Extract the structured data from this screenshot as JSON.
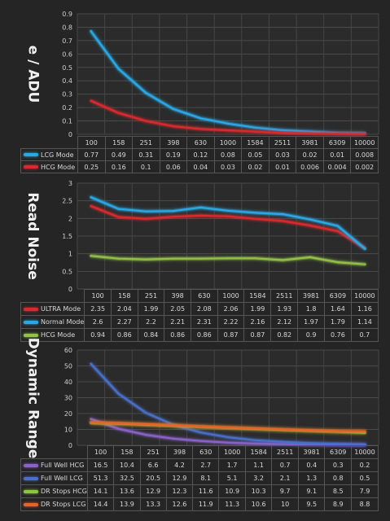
{
  "chart_data": [
    {
      "type": "line",
      "ylabel": "e / ADU",
      "ylim": [
        0,
        0.9
      ],
      "yticks": [
        "0",
        "0.1",
        "0.2",
        "0.3",
        "0.4",
        "0.5",
        "0.6",
        "0.7",
        "0.8",
        "0.9"
      ],
      "categories": [
        "100",
        "158",
        "251",
        "398",
        "630",
        "1000",
        "1584",
        "2511",
        "3981",
        "6309",
        "10000"
      ],
      "series": [
        {
          "name": "LCG Mode",
          "color": "#29a9e6",
          "values": [
            "0.77",
            "0.49",
            "0.31",
            "0.19",
            "0.12",
            "0.08",
            "0.05",
            "0.03",
            "0.02",
            "0.01",
            "0.008"
          ]
        },
        {
          "name": "HCG Mode",
          "color": "#d9292f",
          "values": [
            "0.25",
            "0.16",
            "0.1",
            "0.06",
            "0.04",
            "0.03",
            "0.02",
            "0.01",
            "0.006",
            "0.004",
            "0.002"
          ]
        }
      ]
    },
    {
      "type": "line",
      "ylabel": "Read Noise",
      "ylim": [
        0,
        3
      ],
      "yticks": [
        "0",
        "0.5",
        "1",
        "1.5",
        "2",
        "2.5",
        "3"
      ],
      "categories": [
        "100",
        "158",
        "251",
        "398",
        "630",
        "1000",
        "1584",
        "2511",
        "3981",
        "6309",
        "10000"
      ],
      "series": [
        {
          "name": "ULTRA Mode",
          "color": "#d9292f",
          "values": [
            "2.35",
            "2.04",
            "1.99",
            "2.05",
            "2.08",
            "2.06",
            "1.99",
            "1.93",
            "1.8",
            "1.64",
            "1.16"
          ]
        },
        {
          "name": "Normal Mode",
          "color": "#29a9e6",
          "values": [
            "2.6",
            "2.27",
            "2.2",
            "2.21",
            "2.31",
            "2.22",
            "2.16",
            "2.12",
            "1.97",
            "1.79",
            "1.14"
          ]
        },
        {
          "name": "HCG Mode",
          "color": "#93c047",
          "values": [
            "0.94",
            "0.86",
            "0.84",
            "0.86",
            "0.86",
            "0.87",
            "0.87",
            "0.82",
            "0.9",
            "0.76",
            "0.7"
          ]
        }
      ]
    },
    {
      "type": "line",
      "ylabel": "Dynamic Range",
      "ylim": [
        0,
        60
      ],
      "yticks": [
        "0",
        "10",
        "20",
        "30",
        "40",
        "50",
        "60"
      ],
      "categories": [
        "100",
        "158",
        "251",
        "398",
        "630",
        "1000",
        "1584",
        "2511",
        "3981",
        "6309",
        "10000"
      ],
      "series": [
        {
          "name": "Full Well HCG",
          "color": "#8a62c8",
          "values": [
            "16.5",
            "10.4",
            "6.6",
            "4.2",
            "2.7",
            "1.7",
            "1.1",
            "0.7",
            "0.4",
            "0.3",
            "0.2"
          ]
        },
        {
          "name": "Full Well LCG",
          "color": "#4a6fc8",
          "values": [
            "51.3",
            "32.5",
            "20.5",
            "12.9",
            "8.1",
            "5.1",
            "3.2",
            "2.1",
            "1.3",
            "0.8",
            "0.5"
          ]
        },
        {
          "name": "DR Stops HCG",
          "color": "#8cc63f",
          "values": [
            "14.1",
            "13.6",
            "12.9",
            "12.3",
            "11.6",
            "10.9",
            "10.3",
            "9.7",
            "9.1",
            "8.5",
            "7.9"
          ]
        },
        {
          "name": "DR Stops LCG",
          "color": "#e8622a",
          "values": [
            "14.4",
            "13.9",
            "13.3",
            "12.6",
            "11.9",
            "11.3",
            "10.6",
            "10",
            "9.5",
            "8.9",
            "8.8"
          ]
        }
      ]
    }
  ]
}
